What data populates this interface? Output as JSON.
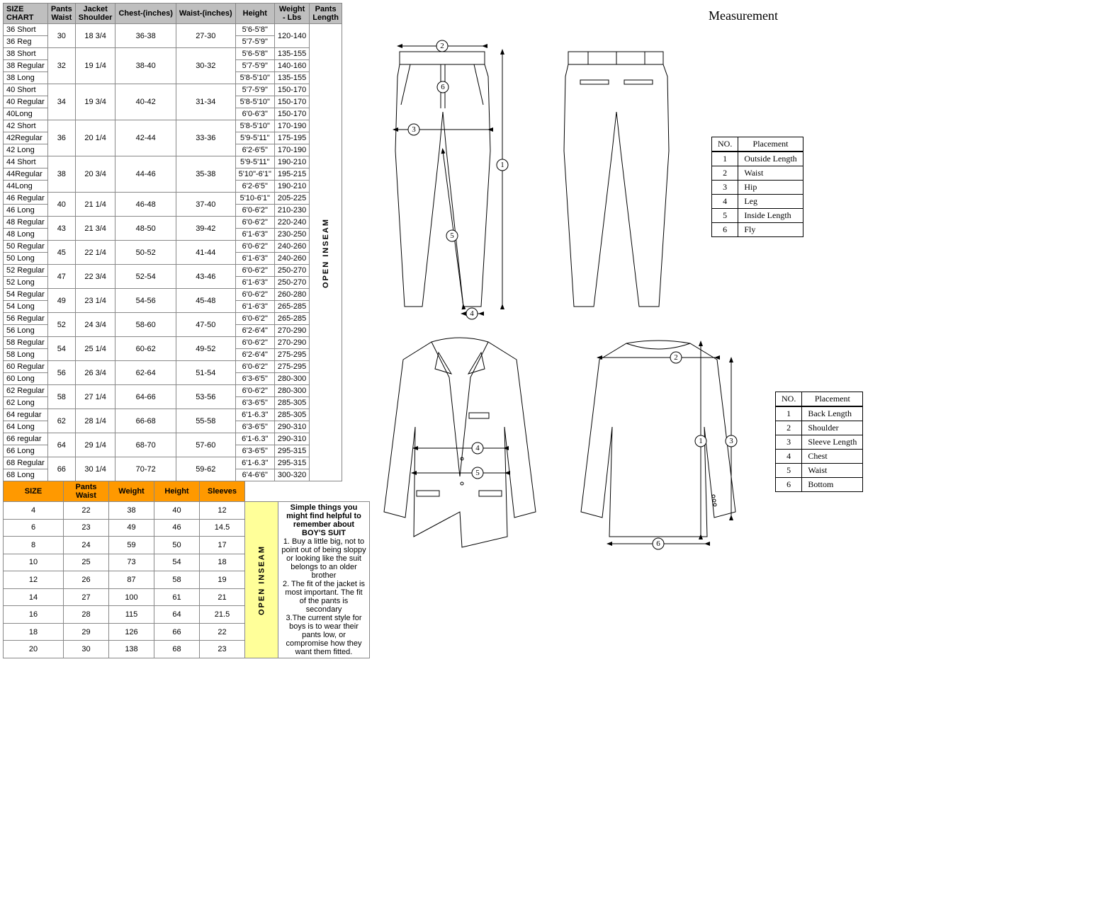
{
  "title": "Measurement",
  "main_headers": [
    "SIZE CHART",
    "Pants Waist",
    "Jacket Shoulder",
    "Chest-(inches)",
    "Waist-(inches)",
    "Height",
    "Weight - Lbs",
    "Pants Length"
  ],
  "groups": [
    {
      "waist": "30",
      "shoulder": "18 3/4",
      "chest": "36-38",
      "ginches": "27-30",
      "rows": [
        {
          "size": "36 Short",
          "height": "5'6-5'8\"",
          "weight": "120-140",
          "wspan": 2
        },
        {
          "size": "36 Reg",
          "height": "5'7-5'9\""
        }
      ]
    },
    {
      "waist": "32",
      "shoulder": "19 1/4",
      "chest": "38-40",
      "ginches": "30-32",
      "rows": [
        {
          "size": "38 Short",
          "height": "5'6-5'8\"",
          "weight": "135-155"
        },
        {
          "size": "38 Regular",
          "height": "5'7-5'9\"",
          "weight": "140-160"
        },
        {
          "size": "38 Long",
          "height": "5'8-5'10\"",
          "weight": "135-155"
        }
      ]
    },
    {
      "waist": "34",
      "shoulder": "19 3/4",
      "chest": "40-42",
      "ginches": "31-34",
      "rows": [
        {
          "size": "40 Short",
          "height": "5'7-5'9\"",
          "weight": "150-170"
        },
        {
          "size": "40 Regular",
          "height": "5'8-5'10\"",
          "weight": "150-170"
        },
        {
          "size": "40Long",
          "height": "6'0-6'3\"",
          "weight": "150-170"
        }
      ]
    },
    {
      "waist": "36",
      "shoulder": "20 1/4",
      "chest": "42-44",
      "ginches": "33-36",
      "rows": [
        {
          "size": "42 Short",
          "height": "5'8-5'10\"",
          "weight": "170-190"
        },
        {
          "size": "42Regular",
          "height": "5'9-5'11\"",
          "weight": "175-195"
        },
        {
          "size": "42 Long",
          "height": "6'2-6'5\"",
          "weight": "170-190"
        }
      ]
    },
    {
      "waist": "38",
      "shoulder": "20 3/4",
      "chest": "44-46",
      "ginches": "35-38",
      "rows": [
        {
          "size": "44 Short",
          "height": "5'9-5'11\"",
          "weight": "190-210"
        },
        {
          "size": "44Regular",
          "height": "5'10\"-6'1\"",
          "weight": "195-215"
        },
        {
          "size": "44Long",
          "height": "6'2-6'5\"",
          "weight": "190-210"
        }
      ]
    },
    {
      "waist": "40",
      "shoulder": "21 1/4",
      "chest": "46-48",
      "ginches": "37-40",
      "rows": [
        {
          "size": "46 Regular",
          "height": "5'10-6'1\"",
          "weight": "205-225"
        },
        {
          "size": "46 Long",
          "height": "6'0-6'2\"",
          "weight": "210-230"
        }
      ]
    },
    {
      "waist": "43",
      "shoulder": "21 3/4",
      "chest": "48-50",
      "ginches": "39-42",
      "rows": [
        {
          "size": "48 Regular",
          "height": "6'0-6'2\"",
          "weight": "220-240"
        },
        {
          "size": "48 Long",
          "height": "6'1-6'3\"",
          "weight": "230-250"
        }
      ]
    },
    {
      "waist": "45",
      "shoulder": "22 1/4",
      "chest": "50-52",
      "ginches": "41-44",
      "rows": [
        {
          "size": "50 Regular",
          "height": "6'0-6'2\"",
          "weight": "240-260"
        },
        {
          "size": "50 Long",
          "height": "6'1-6'3\"",
          "weight": "240-260"
        }
      ]
    },
    {
      "waist": "47",
      "shoulder": "22 3/4",
      "chest": "52-54",
      "ginches": "43-46",
      "rows": [
        {
          "size": "52 Regular",
          "height": "6'0-6'2\"",
          "weight": "250-270"
        },
        {
          "size": "52 Long",
          "height": "6'1-6'3\"",
          "weight": "250-270"
        }
      ]
    },
    {
      "waist": "49",
      "shoulder": "23 1/4",
      "chest": "54-56",
      "ginches": "45-48",
      "rows": [
        {
          "size": "54 Regular",
          "height": "6'0-6'2\"",
          "weight": "260-280"
        },
        {
          "size": "54 Long",
          "height": "6'1-6'3\"",
          "weight": "265-285"
        }
      ]
    },
    {
      "waist": "52",
      "shoulder": "24 3/4",
      "chest": "58-60",
      "ginches": "47-50",
      "rows": [
        {
          "size": "56 Regular",
          "height": "6'0-6'2\"",
          "weight": "265-285"
        },
        {
          "size": "56 Long",
          "height": "6'2-6'4\"",
          "weight": "270-290"
        }
      ]
    },
    {
      "waist": "54",
      "shoulder": "25 1/4",
      "chest": "60-62",
      "ginches": "49-52",
      "rows": [
        {
          "size": "58 Regular",
          "height": "6'0-6'2\"",
          "weight": "270-290"
        },
        {
          "size": "58 Long",
          "height": "6'2-6'4\"",
          "weight": "275-295"
        }
      ]
    },
    {
      "waist": "56",
      "shoulder": "26 3/4",
      "chest": "62-64",
      "ginches": "51-54",
      "rows": [
        {
          "size": "60 Regular",
          "height": "6'0-6'2\"",
          "weight": "275-295"
        },
        {
          "size": "60 Long",
          "height": "6'3-6'5\"",
          "weight": "280-300"
        }
      ]
    },
    {
      "waist": "58",
      "shoulder": "27 1/4",
      "chest": "64-66",
      "ginches": "53-56",
      "rows": [
        {
          "size": "62 Regular",
          "height": "6'0-6'2\"",
          "weight": "280-300"
        },
        {
          "size": "62 Long",
          "height": "6'3-6'5\"",
          "weight": "285-305"
        }
      ]
    },
    {
      "waist": "62",
      "shoulder": "28 1/4",
      "chest": "66-68",
      "ginches": "55-58",
      "rows": [
        {
          "size": "64 regular",
          "height": "6'1-6.3\"",
          "weight": "285-305"
        },
        {
          "size": "64 Long",
          "height": "6'3-6'5\"",
          "weight": "290-310"
        }
      ]
    },
    {
      "waist": "64",
      "shoulder": "29 1/4",
      "chest": "68-70",
      "ginches": "57-60",
      "rows": [
        {
          "size": "66 regular",
          "height": "6'1-6.3\"",
          "weight": "290-310"
        },
        {
          "size": "66 Long",
          "height": "6'3-6'5\"",
          "weight": "295-315"
        }
      ]
    },
    {
      "waist": "66",
      "shoulder": "30 1/4",
      "chest": "70-72",
      "ginches": "59-62",
      "rows": [
        {
          "size": "68 Regular",
          "height": "6'1-6.3\"",
          "weight": "295-315"
        },
        {
          "size": "68 Long",
          "height": "6'4-6'6\"",
          "weight": "300-320"
        }
      ]
    }
  ],
  "open_inseam_label": "OPEN INSEAM",
  "boys_headers": [
    "SIZE",
    "Pants Waist",
    "Weight",
    "Height",
    "Sleeves"
  ],
  "boys_rows": [
    [
      "4",
      "22",
      "38",
      "40",
      "12"
    ],
    [
      "6",
      "23",
      "49",
      "46",
      "14.5"
    ],
    [
      "8",
      "24",
      "59",
      "50",
      "17"
    ],
    [
      "10",
      "25",
      "73",
      "54",
      "18"
    ],
    [
      "12",
      "26",
      "87",
      "58",
      "19"
    ],
    [
      "14",
      "27",
      "100",
      "61",
      "21"
    ],
    [
      "16",
      "28",
      "115",
      "64",
      "21.5"
    ],
    [
      "18",
      "29",
      "126",
      "66",
      "22"
    ],
    [
      "20",
      "30",
      "138",
      "68",
      "23"
    ]
  ],
  "tips_title": "Simple things you might find  helpful to remember about BOY'S SUIT",
  "tips": [
    "1. Buy a little big, not to point out of being sloppy or looking like the suit belongs to an older brother",
    "2. The fit of the jacket is most important. The fit of the pants is secondary",
    "3.The current style for boys is to wear their pants low, or compromise how they want them fitted."
  ],
  "placement_header": [
    "NO.",
    "Placement"
  ],
  "pants_placement": [
    [
      "1",
      "Outside  Length"
    ],
    [
      "2",
      "Waist"
    ],
    [
      "3",
      "Hip"
    ],
    [
      "4",
      "Leg"
    ],
    [
      "5",
      "Inside  Length"
    ],
    [
      "6",
      "Fly"
    ]
  ],
  "jacket_placement": [
    [
      "1",
      "Back  Length"
    ],
    [
      "2",
      "Shoulder"
    ],
    [
      "3",
      "Sleeve  Length"
    ],
    [
      "4",
      "Chest"
    ],
    [
      "5",
      "Waist"
    ],
    [
      "6",
      "Bottom"
    ]
  ]
}
